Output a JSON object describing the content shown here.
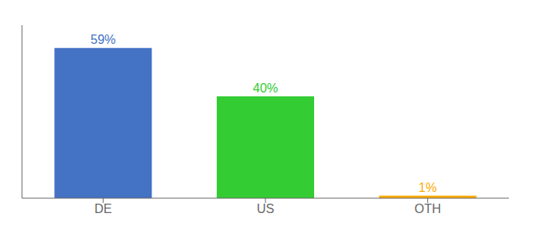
{
  "chart_data": {
    "type": "bar",
    "categories": [
      "DE",
      "US",
      "OTH"
    ],
    "values": [
      59,
      40,
      1
    ],
    "value_labels": [
      "59%",
      "40%",
      "1%"
    ],
    "colors": [
      "#4472c4",
      "#33cc33",
      "#ffaa00"
    ],
    "ylim": [
      0,
      68
    ],
    "yticks": [],
    "tick_labels": "x",
    "data_labels": true
  }
}
